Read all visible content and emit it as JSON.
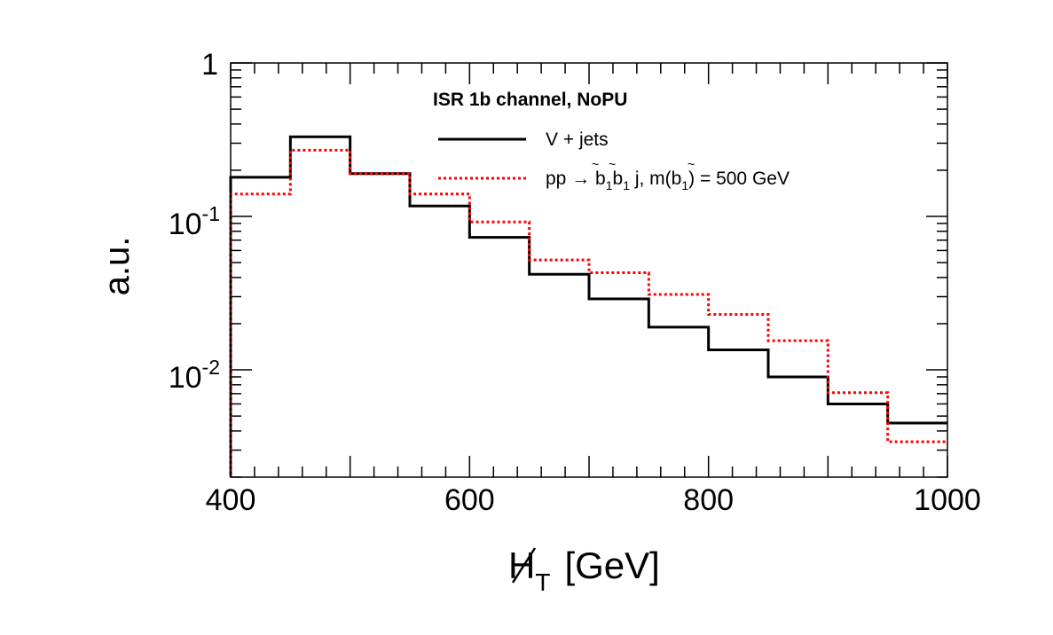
{
  "chart_data": {
    "type": "histogram",
    "title": "",
    "xlabel_main": "H",
    "xlabel_sub": "T",
    "xlabel_unit": "[GeV]",
    "ylabel": "a.u.",
    "x_range": [
      400,
      1000
    ],
    "y_range": [
      0.002,
      1
    ],
    "y_scale": "log",
    "x_ticks": [
      {
        "value": 400,
        "label": "400"
      },
      {
        "value": 600,
        "label": "600"
      },
      {
        "value": 800,
        "label": "800"
      },
      {
        "value": 1000,
        "label": "1000"
      }
    ],
    "y_ticks": [
      {
        "value": 1,
        "label_base": "1",
        "label_exp": ""
      },
      {
        "value": 0.1,
        "label_base": "10",
        "label_exp": "-1"
      },
      {
        "value": 0.01,
        "label_base": "10",
        "label_exp": "-2"
      }
    ],
    "legend_title": "ISR 1b channel, NoPU",
    "bin_edges": [
      400,
      450,
      500,
      550,
      600,
      650,
      700,
      750,
      800,
      850,
      900,
      950,
      1000
    ],
    "series": [
      {
        "name": "V + jets",
        "style": "solid",
        "color": "#000000",
        "values": [
          0.18,
          0.33,
          0.19,
          0.117,
          0.073,
          0.042,
          0.029,
          0.019,
          0.0135,
          0.009,
          0.006,
          0.0045
        ]
      },
      {
        "name": "pp → b̃₁b̃₁ j, m(b̃₁) = 500 GeV",
        "style": "dotted",
        "color": "#ff0000",
        "values": [
          0.14,
          0.27,
          0.19,
          0.14,
          0.092,
          0.052,
          0.043,
          0.031,
          0.023,
          0.0155,
          0.0071,
          0.0034
        ]
      }
    ],
    "legend": {
      "position": "top-center",
      "entries": [
        {
          "text_prefix": "pp → ",
          "text_b1": "b",
          "text_sub1": "1",
          "text_b2": "b",
          "text_sub2": "1",
          "text_mid": " j, m(",
          "text_b3": "b",
          "text_sub3": "1",
          "text_suffix": ") = 500 GeV"
        }
      ]
    }
  }
}
